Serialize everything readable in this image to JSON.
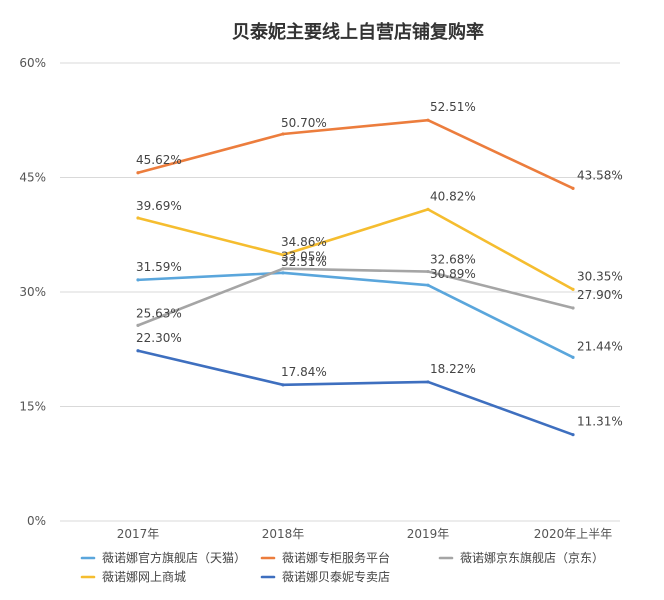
{
  "chart_data": {
    "type": "line",
    "title": "贝泰妮主要线上自营店铺复购率",
    "xlabel": "",
    "ylabel": "",
    "categories": [
      "2017年",
      "2018年",
      "2019年",
      "2020年上半年"
    ],
    "ylim": [
      0,
      60
    ],
    "yticks": [
      "0%",
      "15%",
      "30%",
      "45%",
      "60%"
    ],
    "ytick_values": [
      0,
      15,
      30,
      45,
      60
    ],
    "grid": true,
    "legend_position": "bottom",
    "series": [
      {
        "name": "薇诺娜官方旗舰店（天猫）",
        "color": "#5aa6dc",
        "values": [
          31.59,
          32.51,
          30.89,
          21.44
        ],
        "labels": [
          "31.59%",
          "32.51%",
          "30.89%",
          "21.44%"
        ]
      },
      {
        "name": "薇诺娜专柜服务平台",
        "color": "#ec7d3d",
        "values": [
          45.62,
          50.7,
          52.51,
          43.58
        ],
        "labels": [
          "45.62%",
          "50.70%",
          "52.51%",
          "43.58%"
        ]
      },
      {
        "name": "薇诺娜京东旗舰店（京东）",
        "color": "#a5a5a5",
        "values": [
          25.63,
          33.05,
          32.68,
          27.9
        ],
        "labels": [
          "25.63%",
          "33.05%",
          "32.68%",
          "27.90%"
        ]
      },
      {
        "name": "薇诺娜网上商城",
        "color": "#f5bd2f",
        "values": [
          39.69,
          34.86,
          40.82,
          30.35
        ],
        "labels": [
          "39.69%",
          "34.86%",
          "40.82%",
          "30.35%"
        ]
      },
      {
        "name": "薇诺娜贝泰妮专卖店",
        "color": "#3e6fbf",
        "values": [
          22.3,
          17.84,
          18.22,
          11.31
        ],
        "labels": [
          "22.30%",
          "17.84%",
          "18.22%",
          "11.31%"
        ]
      }
    ]
  }
}
